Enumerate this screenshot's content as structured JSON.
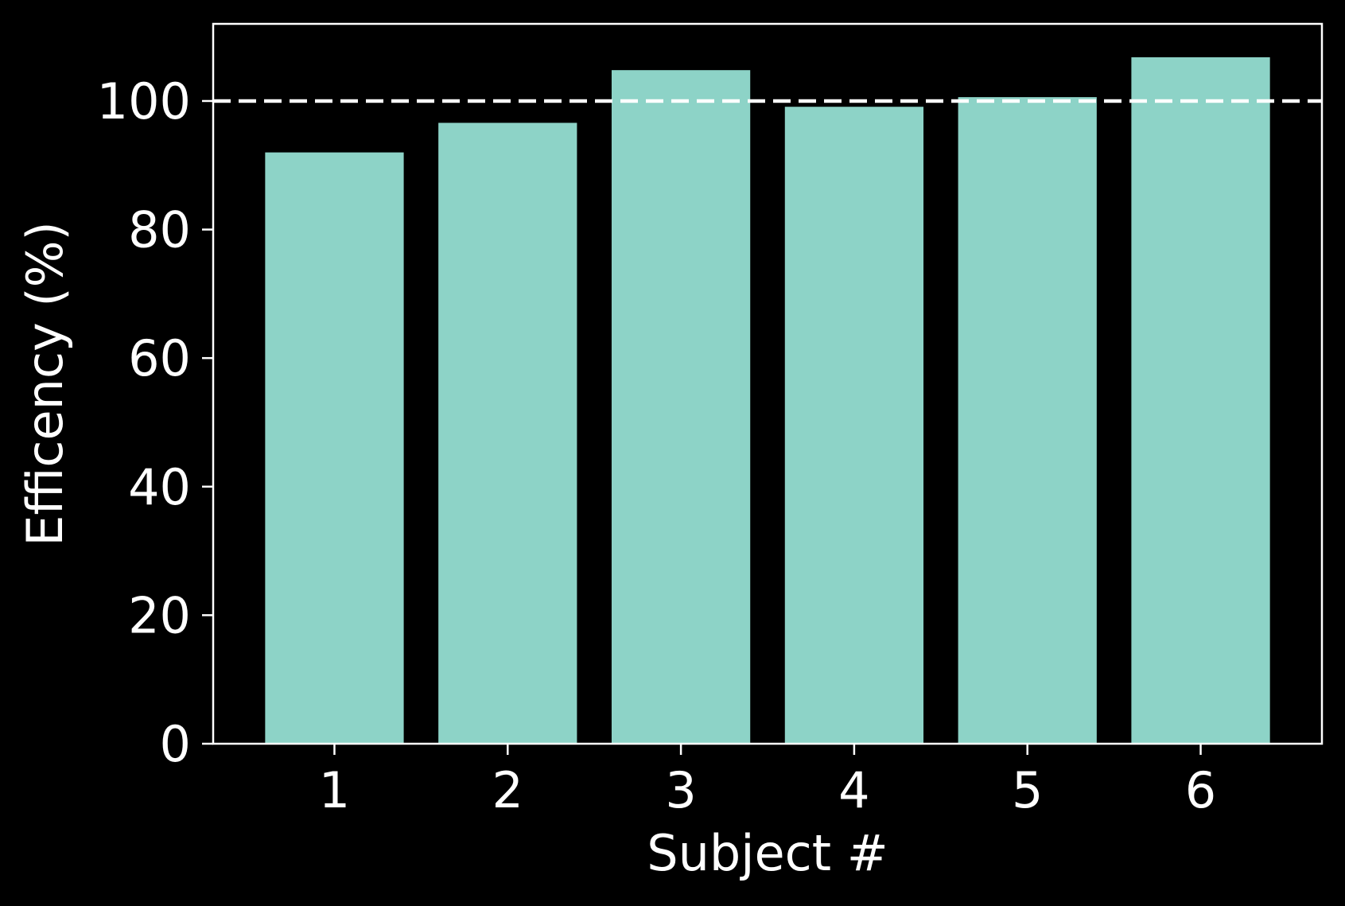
{
  "chart_data": {
    "type": "bar",
    "title": "",
    "xlabel": "Subject #",
    "ylabel": "Efficency (%)",
    "categories": [
      "1",
      "2",
      "3",
      "4",
      "5",
      "6"
    ],
    "values": [
      92.0,
      96.6,
      104.8,
      99.1,
      100.6,
      106.8
    ],
    "ylim": [
      0,
      112
    ],
    "yticks": [
      0,
      20,
      40,
      60,
      80,
      100
    ],
    "reference_line": {
      "y": 100,
      "style": "dashed",
      "color": "#ffffff"
    },
    "grid": false,
    "colors": {
      "bar": "#8dd3c7",
      "background": "#000000",
      "axes": "#ffffff"
    }
  }
}
